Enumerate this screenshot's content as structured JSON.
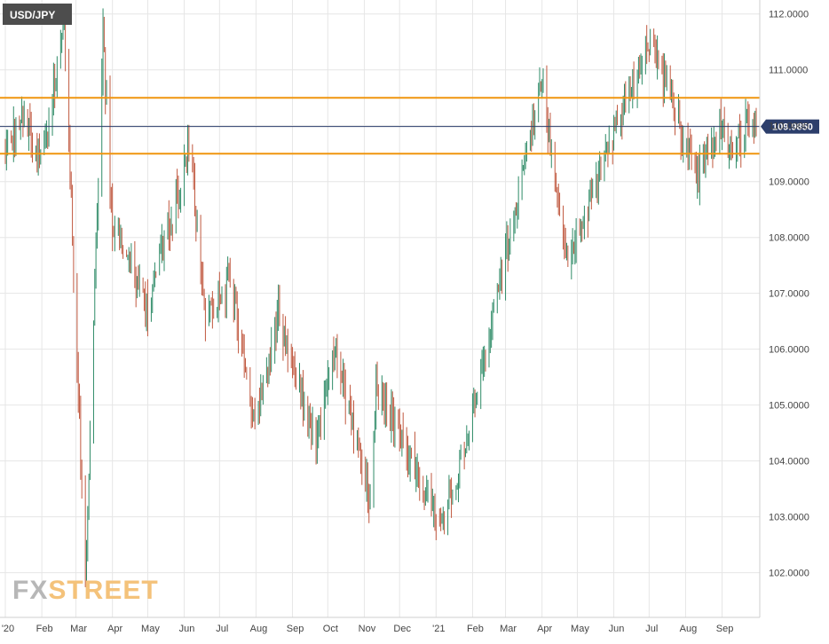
{
  "symbol_label": "USD/JPY",
  "watermark": {
    "part1": "FX",
    "part2": "STREET"
  },
  "colors": {
    "up": "#2e8b67",
    "down": "#c0583f",
    "level_lines": "#f0950e",
    "current_line": "#2c3e6b",
    "price_badge": "#2c3e6b",
    "symbol_badge": "#4d4d4d",
    "grid": "#e6e6e6",
    "axis_text": "#444444",
    "watermark_fx": "#b7b7b7",
    "watermark_street": "#f4c27a"
  },
  "chart_data": {
    "type": "ohlc",
    "title": "USD/JPY",
    "ylim": [
      101.2,
      112.25
    ],
    "y_ticks": [
      "112.0000",
      "111.0000",
      "110.0000",
      "109.0000",
      "108.0000",
      "107.0000",
      "106.0000",
      "105.0000",
      "104.0000",
      "103.0000",
      "102.0000"
    ],
    "x_ticks": [
      "'20",
      "Feb",
      "Mar",
      "Apr",
      "May",
      "Jun",
      "Jul",
      "Aug",
      "Sep",
      "Oct",
      "Nov",
      "Dec",
      "'21",
      "Feb",
      "Mar",
      "Apr",
      "May",
      "Jun",
      "Jul",
      "Aug",
      "Sep"
    ],
    "current_price": 109.985,
    "current_price_label": "109.9850",
    "horizontal_levels": [
      110.5,
      109.5
    ],
    "grid": true,
    "price_path": [
      [
        "2020-01-01",
        109.5
      ],
      [
        "2020-01-16",
        110.2
      ],
      [
        "2020-02-01",
        109.2
      ],
      [
        "2020-02-20",
        111.9
      ],
      [
        "2020-03-09",
        101.9
      ],
      [
        "2020-03-24",
        111.6
      ],
      [
        "2020-04-01",
        108.2
      ],
      [
        "2020-05-01",
        106.7
      ],
      [
        "2020-06-05",
        109.6
      ],
      [
        "2020-06-20",
        106.5
      ],
      [
        "2020-07-10",
        107.3
      ],
      [
        "2020-07-31",
        104.6
      ],
      [
        "2020-08-20",
        106.6
      ],
      [
        "2020-09-21",
        104.3
      ],
      [
        "2020-10-07",
        106.0
      ],
      [
        "2020-11-06",
        103.3
      ],
      [
        "2020-11-11",
        105.4
      ],
      [
        "2021-01-06",
        102.8
      ],
      [
        "2021-02-03",
        105.0
      ],
      [
        "2021-03-31",
        110.8
      ],
      [
        "2021-04-23",
        107.5
      ],
      [
        "2021-05-20",
        109.2
      ],
      [
        "2021-07-01",
        111.6
      ],
      [
        "2021-08-11",
        109.1
      ],
      [
        "2021-08-30",
        110.0
      ],
      [
        "2021-09-10",
        109.6
      ],
      [
        "2021-09-24",
        110.0
      ]
    ]
  }
}
